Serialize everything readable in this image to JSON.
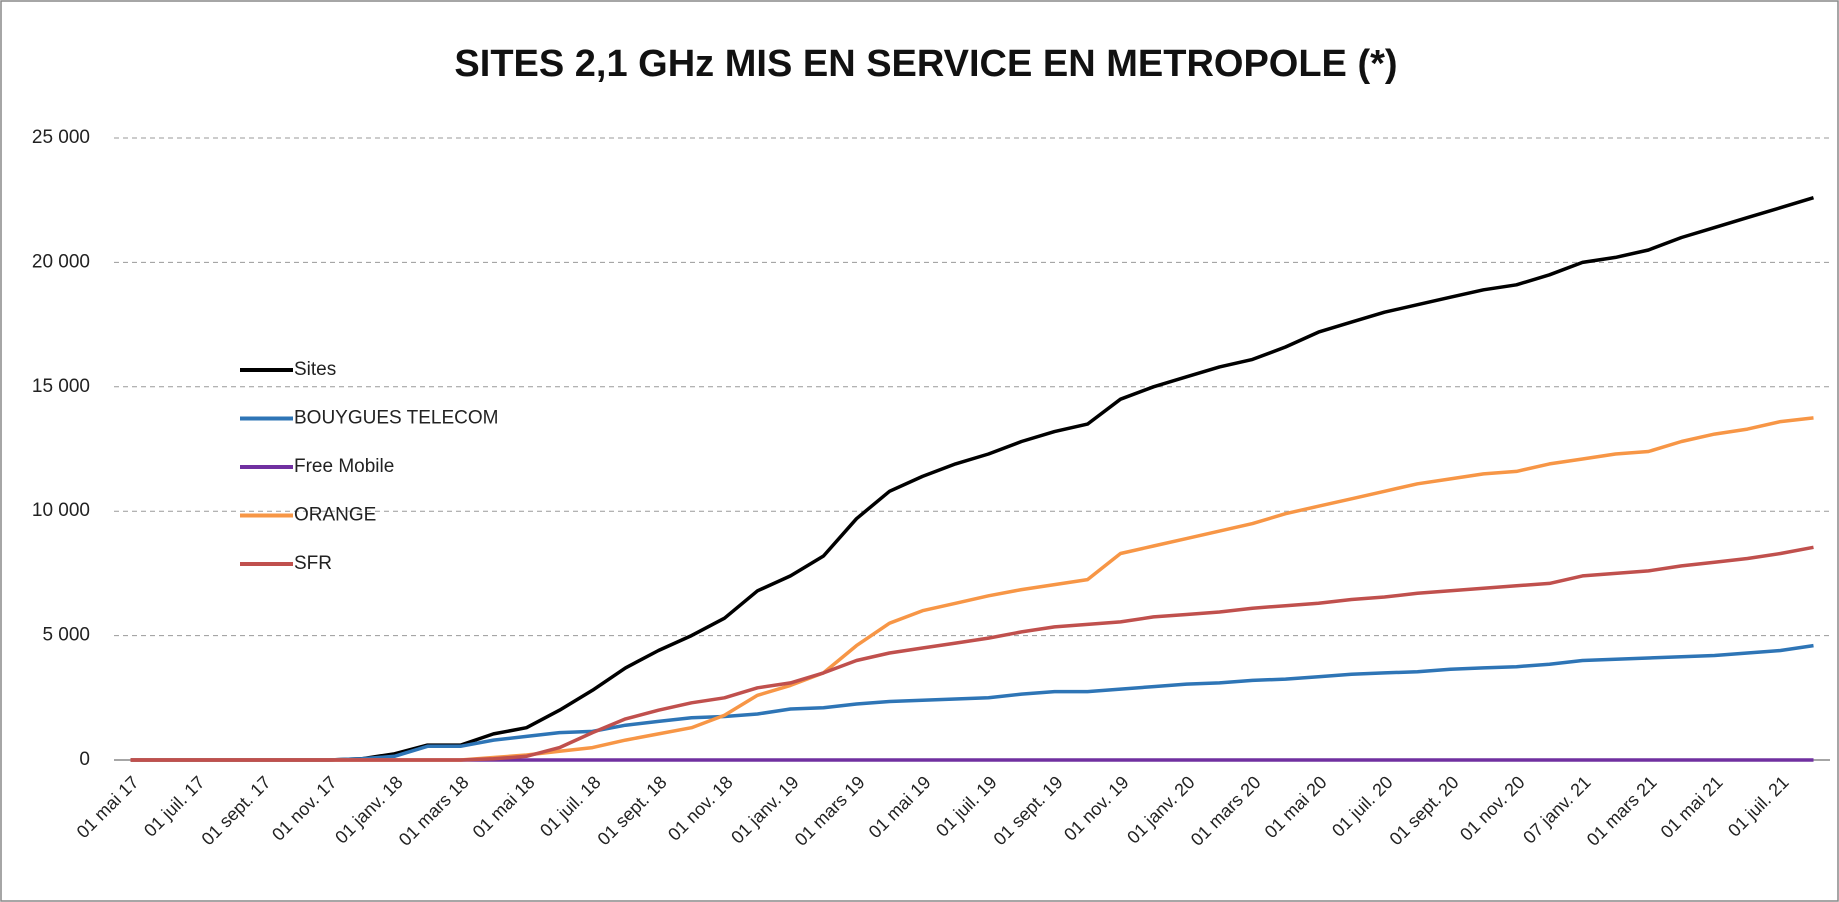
{
  "chart_data": {
    "type": "line",
    "title": "SITES 2,1 GHz MIS EN SERVICE EN METROPOLE (*)",
    "categories": [
      "01 mai 17",
      null,
      "01 juil. 17",
      null,
      "01 sept. 17",
      null,
      "01 nov. 17",
      null,
      "01 janv. 18",
      null,
      "01 mars 18",
      null,
      "01 mai 18",
      null,
      "01 juil. 18",
      null,
      "01 sept. 18",
      null,
      "01 nov. 18",
      null,
      "01 janv. 19",
      null,
      "01 mars 19",
      null,
      "01 mai 19",
      null,
      "01 juil. 19",
      null,
      "01 sept. 19",
      null,
      "01 nov. 19",
      null,
      "01 janv. 20",
      null,
      "01 mars 20",
      null,
      "01 mai 20",
      null,
      "01 juil. 20",
      null,
      "01 sept. 20",
      null,
      "01 nov. 20",
      null,
      "07 janv. 21",
      null,
      "01 mars 21",
      null,
      "01 mai 21",
      null,
      "01 juil. 21",
      null
    ],
    "series": [
      {
        "name": "Sites",
        "color": "#000000",
        "values": [
          0,
          0,
          0,
          0,
          0,
          0,
          0,
          50,
          250,
          600,
          600,
          1050,
          1300,
          2000,
          2800,
          3700,
          4400,
          5000,
          5700,
          6800,
          7400,
          8200,
          9700,
          10800,
          11400,
          11900,
          12300,
          12800,
          13200,
          13500,
          14500,
          15000,
          15400,
          15800,
          16100,
          16600,
          17200,
          17600,
          18000,
          18300,
          18600,
          18900,
          19100,
          19500,
          20000,
          20200,
          20500,
          21000,
          21400,
          21800,
          22200,
          22600
        ]
      },
      {
        "name": "BOUYGUES TELECOM",
        "color": "#2e75b6",
        "values": [
          0,
          0,
          0,
          0,
          0,
          0,
          0,
          50,
          150,
          550,
          550,
          800,
          950,
          1100,
          1150,
          1400,
          1550,
          1700,
          1750,
          1850,
          2050,
          2100,
          2250,
          2350,
          2400,
          2450,
          2500,
          2650,
          2750,
          2750,
          2850,
          2950,
          3050,
          3100,
          3200,
          3250,
          3350,
          3450,
          3500,
          3550,
          3650,
          3700,
          3750,
          3850,
          4000,
          4050,
          4100,
          4150,
          4200,
          4300,
          4400,
          4600
        ]
      },
      {
        "name": "Free Mobile",
        "color": "#7030a0",
        "values": [
          0,
          0,
          0,
          0,
          0,
          0,
          0,
          0,
          0,
          0,
          0,
          0,
          0,
          0,
          0,
          0,
          0,
          0,
          0,
          0,
          0,
          0,
          0,
          0,
          0,
          0,
          0,
          0,
          0,
          0,
          0,
          0,
          0,
          0,
          0,
          0,
          0,
          0,
          0,
          0,
          0,
          0,
          0,
          0,
          0,
          0,
          0,
          0,
          0,
          0,
          0,
          0
        ]
      },
      {
        "name": "ORANGE",
        "color": "#f79646",
        "values": [
          0,
          0,
          0,
          0,
          0,
          0,
          0,
          0,
          0,
          0,
          0,
          100,
          200,
          350,
          500,
          800,
          1050,
          1300,
          1800,
          2600,
          3000,
          3500,
          4600,
          5500,
          6000,
          6300,
          6600,
          6850,
          7050,
          7250,
          8300,
          8600,
          8900,
          9200,
          9500,
          9900,
          10200,
          10500,
          10800,
          11100,
          11300,
          11500,
          11600,
          11900,
          12100,
          12300,
          12400,
          12800,
          13100,
          13300,
          13600,
          13750
        ]
      },
      {
        "name": "SFR",
        "color": "#c0504d",
        "values": [
          0,
          0,
          0,
          0,
          0,
          0,
          0,
          0,
          0,
          0,
          0,
          50,
          150,
          500,
          1100,
          1650,
          2000,
          2300,
          2500,
          2900,
          3100,
          3500,
          4000,
          4300,
          4500,
          4700,
          4900,
          5150,
          5350,
          5450,
          5550,
          5750,
          5850,
          5950,
          6100,
          6200,
          6300,
          6450,
          6550,
          6700,
          6800,
          6900,
          7000,
          7100,
          7400,
          7500,
          7600,
          7800,
          7950,
          8100,
          8300,
          8550
        ]
      }
    ],
    "ylim": [
      0,
      25000
    ],
    "yticks": [
      0,
      {
        "value": 5000,
        "label": "5 000"
      },
      {
        "value": 10000,
        "label": "10 000"
      },
      {
        "value": 15000,
        "label": "15 000"
      },
      {
        "value": 20000,
        "label": "20 000"
      },
      {
        "value": 25000,
        "label": "25 000"
      }
    ],
    "grid": true
  }
}
